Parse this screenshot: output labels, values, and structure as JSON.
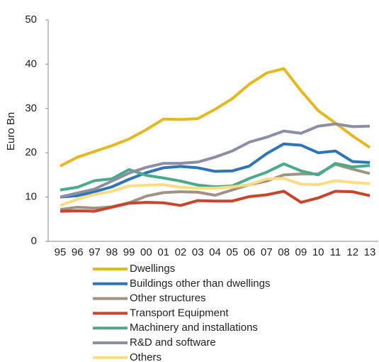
{
  "chart_data": {
    "type": "line",
    "y_label": "Euro Bn",
    "categories": [
      "95",
      "96",
      "97",
      "98",
      "99",
      "00",
      "01",
      "02",
      "03",
      "04",
      "05",
      "06",
      "07",
      "08",
      "09",
      "10",
      "11",
      "12",
      "13"
    ],
    "ylim": [
      0,
      50
    ],
    "yticks": [
      0,
      10,
      20,
      30,
      40,
      50
    ],
    "grid": false,
    "legend": "bottom",
    "series": [
      {
        "name": "Dwellings",
        "color": "#e6b820",
        "values": [
          17,
          19,
          20.3,
          21.6,
          23.1,
          25.2,
          27.6,
          27.5,
          27.7,
          29.8,
          32.2,
          35.5,
          38,
          39,
          34,
          29.5,
          26.7,
          23.8,
          21.2
        ]
      },
      {
        "name": "Buildings other than dwellings",
        "color": "#2e75b6",
        "values": [
          10,
          10.3,
          11.2,
          12.3,
          14,
          15.5,
          16.6,
          16.9,
          16.6,
          15.8,
          15.9,
          17,
          19.8,
          22,
          21.7,
          20,
          20.4,
          18,
          17.8
        ]
      },
      {
        "name": "Other structures",
        "color": "#a09386",
        "values": [
          7.2,
          7.7,
          7.5,
          7.8,
          8.7,
          10.2,
          11,
          11.2,
          11.1,
          10.4,
          11.6,
          12.8,
          13.6,
          15,
          15.2,
          15.2,
          17.4,
          16.3,
          15.3
        ]
      },
      {
        "name": "Transport Equipment",
        "color": "#c8442a",
        "values": [
          6.8,
          6.9,
          6.8,
          7.7,
          8.6,
          8.8,
          8.7,
          8.1,
          9.2,
          9.1,
          9.1,
          10.1,
          10.5,
          11.3,
          8.8,
          9.8,
          11.3,
          11.2,
          10.3
        ]
      },
      {
        "name": "Machinery and installations",
        "color": "#4aab8b",
        "values": [
          11.6,
          12.2,
          13.7,
          14.1,
          16.2,
          14.9,
          14.3,
          13.6,
          12.7,
          12.3,
          12.5,
          14.2,
          15.6,
          17.5,
          15.9,
          15,
          17.6,
          16.8,
          17.1
        ]
      },
      {
        "name": "R&D and software",
        "color": "#8c8fa3",
        "values": [
          10,
          10.9,
          11.8,
          13.6,
          15.4,
          16.7,
          17.6,
          17.6,
          17.9,
          19,
          20.4,
          22.4,
          23.5,
          24.9,
          24.4,
          26,
          26.5,
          25.9,
          26
        ]
      },
      {
        "name": "Others",
        "color": "#fadd82",
        "values": [
          8.1,
          9.5,
          10.6,
          11.3,
          12.5,
          12.7,
          12.8,
          12.2,
          12,
          12,
          12.3,
          12.8,
          14.1,
          14.2,
          12.9,
          12.8,
          13.7,
          13.3,
          13
        ]
      }
    ]
  }
}
